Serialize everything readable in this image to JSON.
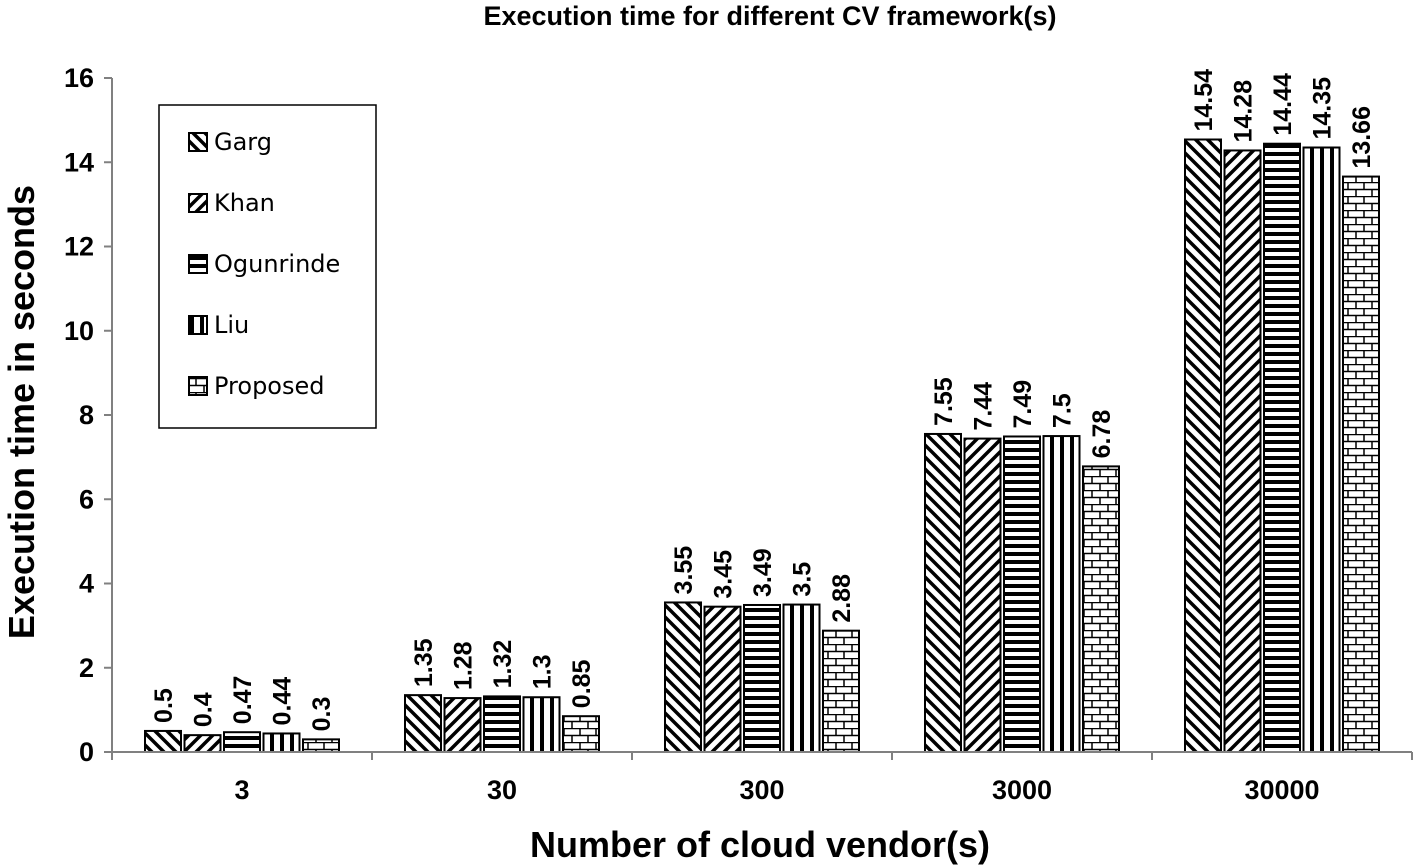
{
  "chart_data": {
    "type": "bar",
    "title": "Execution time for different CV framework(s)",
    "xlabel": "Number of cloud vendor(s)",
    "ylabel": "Execution time in seconds",
    "categories": [
      "3",
      "30",
      "300",
      "3000",
      "30000"
    ],
    "series": [
      {
        "name": "Garg",
        "pattern": "diag-back",
        "values": [
          0.5,
          1.35,
          3.55,
          7.55,
          14.54
        ]
      },
      {
        "name": "Khan",
        "pattern": "diag-fwd",
        "values": [
          0.4,
          1.28,
          3.45,
          7.44,
          14.28
        ]
      },
      {
        "name": "Ogunrinde",
        "pattern": "horizontal",
        "values": [
          0.47,
          1.32,
          3.49,
          7.49,
          14.44
        ]
      },
      {
        "name": "Liu",
        "pattern": "vertical",
        "values": [
          0.44,
          1.3,
          3.5,
          7.5,
          14.35
        ]
      },
      {
        "name": "Proposed",
        "pattern": "brick",
        "values": [
          0.3,
          0.85,
          2.88,
          6.78,
          13.66
        ]
      }
    ],
    "ylim": [
      0,
      16
    ],
    "yticks": [
      0,
      2,
      4,
      6,
      8,
      10,
      12,
      14,
      16
    ],
    "grid": false,
    "legend_position": "top-left",
    "colors": {
      "bar_stroke": "#000000",
      "bar_fill": "#ffffff",
      "axis": "#808080"
    }
  }
}
